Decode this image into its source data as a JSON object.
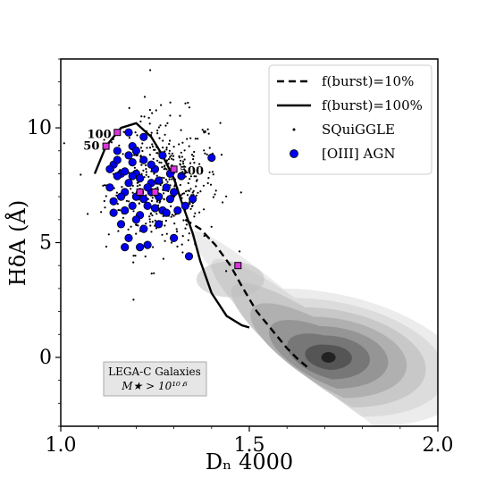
{
  "chart_data": {
    "type": "scatter",
    "xlabel": "Dₙ 4000",
    "ylabel": "HδA (Å)",
    "xlim": [
      1.0,
      2.0
    ],
    "ylim": [
      -3.0,
      13.0
    ],
    "x_ticks": [
      "1.0",
      "1.5",
      "2.0"
    ],
    "y_ticks": [
      "0",
      "5",
      "10"
    ],
    "x_tick_values": [
      1.0,
      1.5,
      2.0
    ],
    "y_tick_values": [
      0,
      5,
      10
    ],
    "grid": false,
    "legend_position": "top-right",
    "legend": [
      {
        "label": "f(burst)=10%",
        "style": "dashed-line"
      },
      {
        "label": "f(burst)=100%",
        "style": "solid-line"
      },
      {
        "label": "SQuiGGLE",
        "style": "small-dot"
      },
      {
        "label": "[OIII] AGN",
        "style": "blue-circle"
      }
    ],
    "text_box": {
      "line1": "LEGA-C Galaxies",
      "line2": "M★ > 10¹⁰ᐧ⁶"
    },
    "contour_center": [
      1.71,
      0.0
    ],
    "contour_levels": 7,
    "series": [
      {
        "name": "f(burst)=10%",
        "type": "line",
        "dash": true,
        "x": [
          1.33,
          1.37,
          1.41,
          1.45,
          1.48,
          1.52,
          1.56,
          1.6,
          1.63,
          1.66
        ],
        "y": [
          6.0,
          5.6,
          4.9,
          4.0,
          3.1,
          2.0,
          1.2,
          0.4,
          -0.1,
          -0.5
        ]
      },
      {
        "name": "f(burst)=100%",
        "type": "line",
        "dash": false,
        "x": [
          1.09,
          1.12,
          1.16,
          1.2,
          1.24,
          1.27,
          1.3,
          1.32,
          1.35,
          1.37,
          1.4,
          1.44,
          1.48,
          1.5
        ],
        "y": [
          8.0,
          9.2,
          10.0,
          10.2,
          9.6,
          8.8,
          7.8,
          6.8,
          5.4,
          4.2,
          2.8,
          1.8,
          1.4,
          1.3
        ]
      },
      {
        "name": "SQuiGGLE",
        "type": "dots",
        "count": 420,
        "center": [
          1.27,
          7.6
        ],
        "spread": [
          0.075,
          1.5
        ]
      },
      {
        "name": "[OIII] AGN",
        "type": "scatter",
        "color": "#0000ee",
        "points": [
          [
            1.13,
            7.4
          ],
          [
            1.14,
            8.4
          ],
          [
            1.15,
            9.0
          ],
          [
            1.16,
            8.0
          ],
          [
            1.14,
            6.8
          ],
          [
            1.17,
            7.2
          ],
          [
            1.18,
            8.8
          ],
          [
            1.19,
            9.2
          ],
          [
            1.2,
            8.0
          ],
          [
            1.21,
            7.8
          ],
          [
            1.22,
            8.6
          ],
          [
            1.17,
            6.4
          ],
          [
            1.18,
            7.6
          ],
          [
            1.19,
            6.6
          ],
          [
            1.2,
            7.0
          ],
          [
            1.21,
            6.2
          ],
          [
            1.22,
            5.6
          ],
          [
            1.23,
            6.6
          ],
          [
            1.24,
            7.6
          ],
          [
            1.25,
            8.2
          ],
          [
            1.26,
            7.0
          ],
          [
            1.27,
            6.4
          ],
          [
            1.28,
            7.4
          ],
          [
            1.29,
            8.0
          ],
          [
            1.3,
            7.2
          ],
          [
            1.31,
            6.4
          ],
          [
            1.3,
            5.2
          ],
          [
            1.33,
            6.6
          ],
          [
            1.34,
            4.4
          ],
          [
            1.4,
            8.7
          ],
          [
            1.16,
            5.8
          ],
          [
            1.17,
            4.8
          ],
          [
            1.21,
            4.8
          ],
          [
            1.23,
            4.9
          ],
          [
            1.26,
            5.8
          ],
          [
            1.18,
            9.8
          ],
          [
            1.2,
            9.0
          ],
          [
            1.15,
            7.9
          ],
          [
            1.19,
            7.9
          ],
          [
            1.24,
            7.2
          ],
          [
            1.16,
            7.0
          ],
          [
            1.22,
            9.6
          ],
          [
            1.25,
            6.5
          ],
          [
            1.28,
            6.3
          ],
          [
            1.32,
            7.9
          ],
          [
            1.13,
            8.2
          ],
          [
            1.14,
            6.3
          ],
          [
            1.2,
            6.0
          ],
          [
            1.23,
            7.4
          ],
          [
            1.27,
            8.8
          ],
          [
            1.18,
            5.2
          ],
          [
            1.24,
            8.4
          ],
          [
            1.29,
            6.9
          ],
          [
            1.19,
            8.5
          ],
          [
            1.22,
            6.9
          ],
          [
            1.15,
            8.6
          ],
          [
            1.26,
            7.7
          ],
          [
            1.17,
            8.1
          ],
          [
            1.21,
            7.2
          ],
          [
            1.35,
            6.9
          ]
        ]
      },
      {
        "name": "age-markers",
        "type": "squares",
        "color": "#dd33dd",
        "points": [
          [
            1.12,
            9.2
          ],
          [
            1.15,
            9.8
          ],
          [
            1.21,
            7.2
          ],
          [
            1.25,
            7.2
          ],
          [
            1.3,
            8.2
          ],
          [
            1.47,
            4.0
          ]
        ]
      }
    ],
    "annotations": [
      {
        "text": "50",
        "x": 1.06,
        "y": 9.05
      },
      {
        "text": "100",
        "x": 1.07,
        "y": 9.55
      },
      {
        "text": "500",
        "x": 1.315,
        "y": 7.95
      }
    ]
  }
}
